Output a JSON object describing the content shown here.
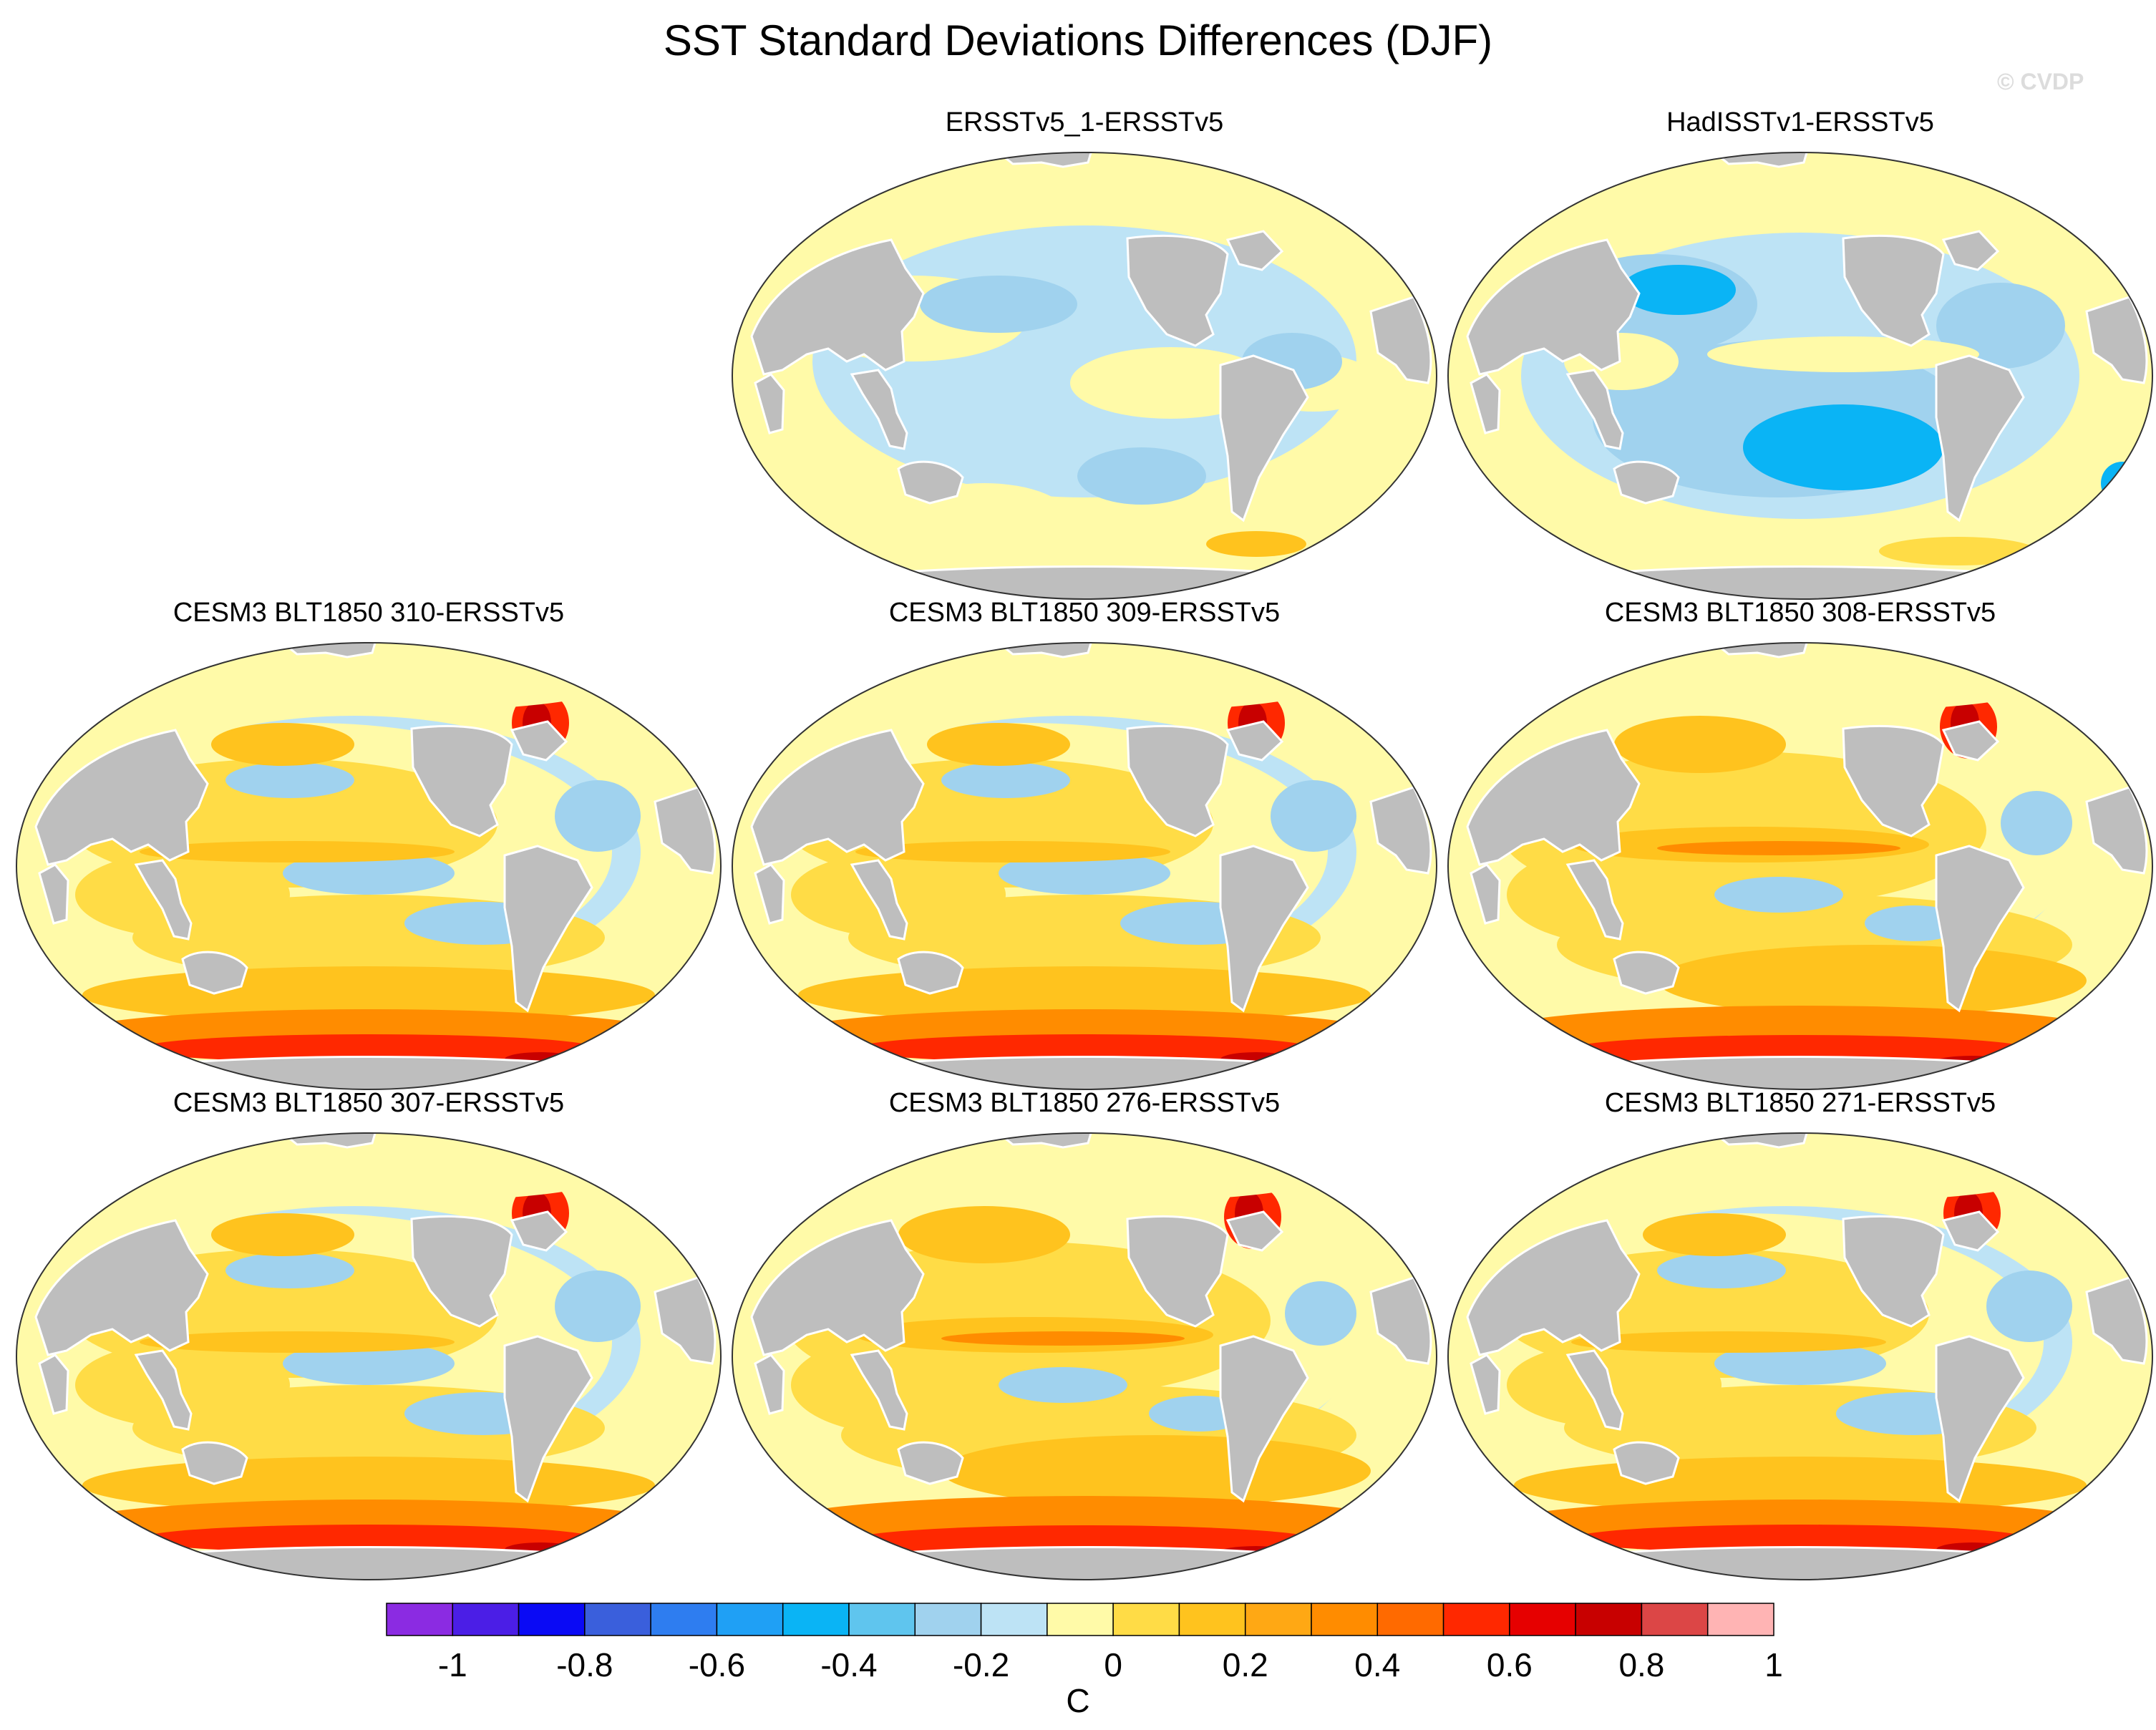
{
  "figure": {
    "title": "SST Standard Deviations Differences (DJF)",
    "watermark": "© CVDP"
  },
  "panels": [
    {
      "title": "ERSSTv5_1-ERSSTv5",
      "pattern": "obs_small"
    },
    {
      "title": "HadISSTv1-ERSSTv5",
      "pattern": "obs_neg"
    },
    {
      "title": "CESM3 BLT1850 310-ERSSTv5",
      "pattern": "model"
    },
    {
      "title": "CESM3 BLT1850 309-ERSSTv5",
      "pattern": "model"
    },
    {
      "title": "CESM3 BLT1850 308-ERSSTv5",
      "pattern": "model_strong"
    },
    {
      "title": "CESM3 BLT1850 307-ERSSTv5",
      "pattern": "model"
    },
    {
      "title": "CESM3 BLT1850 276-ERSSTv5",
      "pattern": "model_strong"
    },
    {
      "title": "CESM3 BLT1850 271-ERSSTv5",
      "pattern": "model"
    }
  ],
  "colorbar": {
    "unit": "C",
    "colors": [
      "#8b2be2",
      "#4b1ee6",
      "#0a0af5",
      "#3a5fdc",
      "#2e7df0",
      "#1fa0f5",
      "#0ab4f5",
      "#5fc5ee",
      "#a0d2ee",
      "#bde3f5",
      "#fffaa8",
      "#ffdc46",
      "#ffc31e",
      "#ffa814",
      "#ff8c00",
      "#ff6a00",
      "#ff2800",
      "#e60000",
      "#c80000",
      "#dc4646",
      "#ffb4b4"
    ],
    "tick_labels": [
      "-1",
      "-0.8",
      "-0.6",
      "-0.4",
      "-0.2",
      "0",
      "0.2",
      "0.4",
      "0.6",
      "0.8",
      "1"
    ]
  },
  "colors": {
    "land": "#bebebe",
    "coast": "#ffffff",
    "outline": "#333333"
  }
}
